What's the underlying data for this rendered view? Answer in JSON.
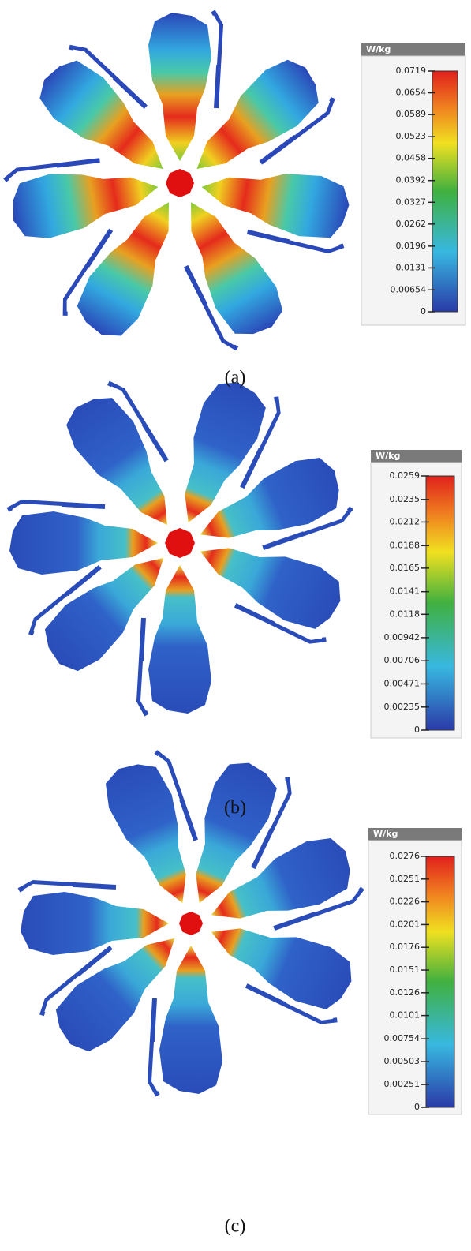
{
  "panels": [
    {
      "caption": "(a)",
      "colorbar": {
        "unit": "W/kg",
        "ticks": [
          0.0719,
          0.0654,
          0.0589,
          0.0523,
          0.0458,
          0.0392,
          0.0327,
          0.0262,
          0.0196,
          0.0131,
          0.00654,
          0
        ]
      }
    },
    {
      "caption": "(b)",
      "colorbar": {
        "unit": "W/kg",
        "ticks": [
          0.0259,
          0.0235,
          0.0212,
          0.0188,
          0.0165,
          0.0141,
          0.0118,
          0.00942,
          0.00706,
          0.00471,
          0.00235,
          0
        ]
      }
    },
    {
      "caption": "(c)",
      "colorbar": {
        "unit": "W/kg",
        "ticks": [
          0.0276,
          0.0251,
          0.0226,
          0.0201,
          0.0176,
          0.0151,
          0.0126,
          0.0101,
          0.00754,
          0.00503,
          0.00251,
          0
        ]
      }
    }
  ]
}
